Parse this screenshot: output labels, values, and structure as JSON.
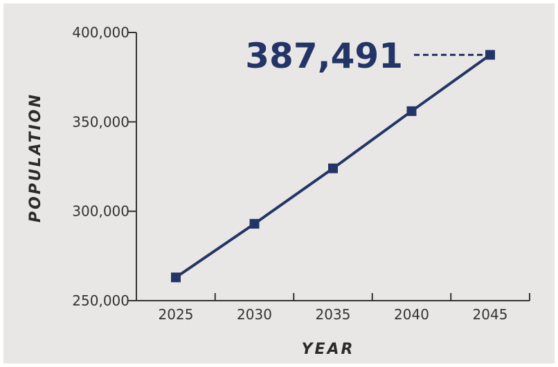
{
  "colors": {
    "background": "#e9e7e5",
    "series": "#233567",
    "axis": "#333333"
  },
  "chart_data": {
    "type": "line",
    "title": "",
    "xlabel": "YEAR",
    "ylabel": "POPULATION",
    "x": [
      2025,
      2030,
      2035,
      2040,
      2045
    ],
    "x_tick_labels": [
      "2025",
      "2030",
      "2035",
      "2040",
      "2045"
    ],
    "y_tick_values": [
      250000,
      300000,
      350000,
      400000
    ],
    "y_tick_labels": [
      "250,000",
      "300,000",
      "350,000",
      "400,000"
    ],
    "ylim": [
      250000,
      400000
    ],
    "xlim": [
      2025,
      2045
    ],
    "grid": false,
    "series": [
      {
        "values": [
          263000,
          293000,
          324000,
          356000,
          387491
        ],
        "marker": "square"
      }
    ],
    "annotation": {
      "text": "387,491",
      "target_index": 4,
      "style": "dashed-leader"
    }
  }
}
